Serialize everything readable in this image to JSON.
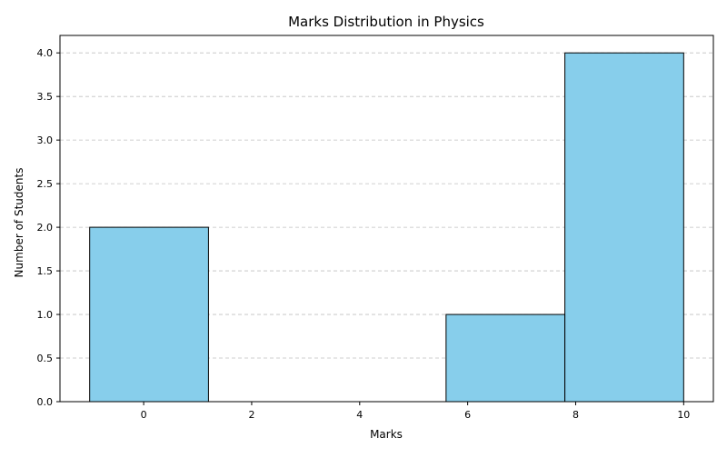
{
  "chart_data": {
    "type": "bar",
    "title": "Marks Distribution in Physics",
    "xlabel": "Marks",
    "ylabel": "Number of Students",
    "bins": [
      {
        "start": -1.0,
        "end": 1.2,
        "count": 2
      },
      {
        "start": 1.2,
        "end": 3.4,
        "count": 0
      },
      {
        "start": 3.4,
        "end": 5.6,
        "count": 0
      },
      {
        "start": 5.6,
        "end": 7.8,
        "count": 1
      },
      {
        "start": 7.8,
        "end": 10.0,
        "count": 4
      }
    ],
    "xlim": [
      -1.55,
      10.55
    ],
    "ylim": [
      0,
      4.2
    ],
    "xticks": [
      0,
      2,
      4,
      6,
      8,
      10
    ],
    "yticks": [
      0.0,
      0.5,
      1.0,
      1.5,
      2.0,
      2.5,
      3.0,
      3.5,
      4.0
    ],
    "grid": "y-dashed",
    "bar_color": "#87ceeb",
    "edge_color": "#000000",
    "grid_color": "#c0c0c0"
  }
}
